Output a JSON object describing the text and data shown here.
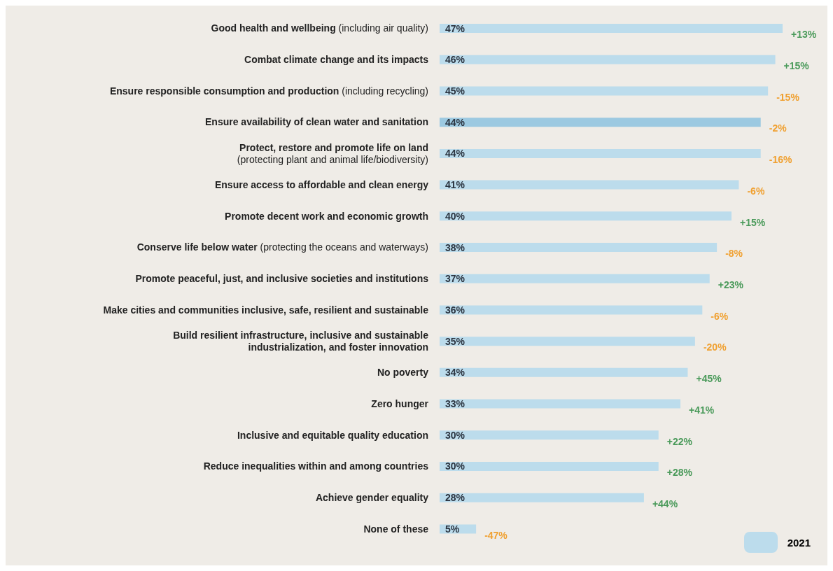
{
  "chart_data": {
    "type": "bar",
    "orientation": "horizontal",
    "categories": [
      "Good health and wellbeing (including air quality)",
      "Combat climate change and its impacts",
      "Ensure responsible consumption and production (including recycling)",
      "Ensure availability of clean water and sanitation",
      "Protect, restore and promote life on land\n(protecting plant and animal life/biodiversity)",
      "Ensure access to affordable and clean energy",
      "Promote decent work and economic growth",
      "Conserve life below water (protecting the oceans and waterways)",
      "Promote peaceful, just, and inclusive societies and institutions",
      "Make cities and communities inclusive, safe, resilient and sustainable",
      "Build resilient infrastructure, inclusive and sustainable\nindustrialization, and foster innovation",
      "No poverty",
      "Zero hunger",
      "Inclusive and equitable quality education",
      "Reduce inequalities within and among countries",
      "Achieve gender equality",
      "None of these"
    ],
    "series": [
      {
        "name": "2021",
        "color": "#bcdcec",
        "colors": [
          "#bcdcec",
          "#bcdcec",
          "#bcdcec",
          "#9cc9e1",
          "#bcdcec",
          "#bcdcec",
          "#bcdcec",
          "#bcdcec",
          "#bcdcec",
          "#bcdcec",
          "#bcdcec",
          "#bcdcec",
          "#bcdcec",
          "#bcdcec",
          "#bcdcec",
          "#bcdcec",
          "#bcdcec"
        ],
        "values": [
          47,
          46,
          45,
          44,
          44,
          41,
          40,
          38,
          37,
          36,
          35,
          34,
          33,
          30,
          30,
          28,
          5
        ],
        "value_labels": [
          "47%",
          "46%",
          "45%",
          "44%",
          "44%",
          "41%",
          "40%",
          "38%",
          "37%",
          "36%",
          "35%",
          "34%",
          "33%",
          "30%",
          "30%",
          "28%",
          "5%"
        ]
      }
    ],
    "annotations": [
      {
        "text": "+13%",
        "x": 47,
        "y": "Good health and wellbeing (including air quality)"
      },
      {
        "text": "+15%",
        "x": 46,
        "y": "Combat climate change and its impacts"
      },
      {
        "text": "-15%",
        "x": 45,
        "y": "Ensure responsible consumption and production (including recycling)"
      },
      {
        "text": "-2%",
        "x": 44,
        "y": "Ensure availability of clean water and sanitation"
      },
      {
        "text": "-16%",
        "x": 44,
        "y": "Protect, restore and promote life on land\n(protecting plant and animal life/biodiversity)"
      },
      {
        "text": "-6%",
        "x": 41,
        "y": "Ensure access to affordable and clean energy"
      },
      {
        "text": "+15%",
        "x": 40,
        "y": "Promote decent work and economic growth"
      },
      {
        "text": "-8%",
        "x": 38,
        "y": "Conserve life below water (protecting the oceans and waterways)"
      },
      {
        "text": "+23%",
        "x": 37,
        "y": "Promote peaceful, just, and inclusive societies and institutions"
      },
      {
        "text": "-6%",
        "x": 36,
        "y": "Make cities and communities inclusive, safe, resilient and sustainable"
      },
      {
        "text": "-20%",
        "x": 35,
        "y": "Build resilient infrastructure, inclusive and sustainable\nindustrialization, and foster innovation"
      },
      {
        "text": "+45%",
        "x": 34,
        "y": "No poverty"
      },
      {
        "text": "+41%",
        "x": 33,
        "y": "Zero hunger"
      },
      {
        "text": "+22%",
        "x": 30,
        "y": "Inclusive and equitable quality education"
      },
      {
        "text": "+28%",
        "x": 30,
        "y": "Reduce inequalities within and among countries"
      },
      {
        "text": "+44%",
        "x": 28,
        "y": "Achieve gender equality"
      },
      {
        "text": "-47%",
        "x": 5,
        "y": "None of these"
      }
    ],
    "legend": "bottom right"
  }
}
